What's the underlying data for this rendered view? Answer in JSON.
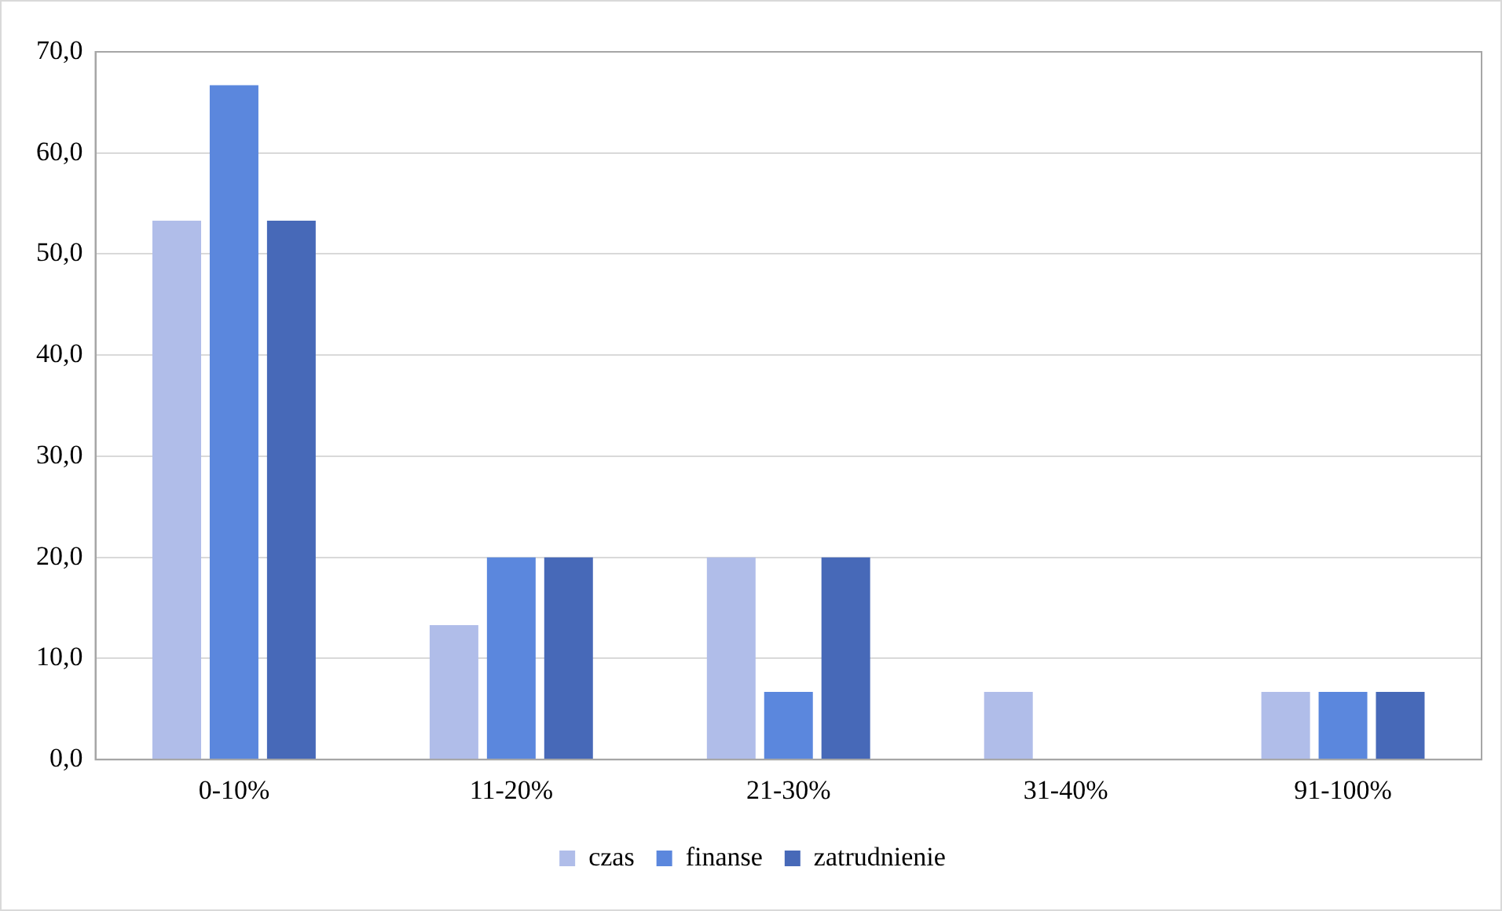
{
  "chart_data": {
    "type": "bar",
    "categories": [
      "0-10%",
      "11-20%",
      "21-30%",
      "31-40%",
      "91-100%"
    ],
    "series": [
      {
        "name": "czas",
        "color": "#b0bde9",
        "values": [
          53.3,
          13.3,
          20,
          6.7,
          6.7
        ]
      },
      {
        "name": "finanse",
        "color": "#5b87dd",
        "values": [
          66.7,
          20,
          6.7,
          0,
          6.7
        ]
      },
      {
        "name": "zatrudnienie",
        "color": "#4769b8",
        "values": [
          53.3,
          20,
          20,
          0,
          6.7
        ]
      }
    ],
    "ylim": [
      0,
      70
    ],
    "yticks": [
      {
        "value": 0,
        "label": "0,0"
      },
      {
        "value": 10,
        "label": "10,0"
      },
      {
        "value": 20,
        "label": "20,0"
      },
      {
        "value": 30,
        "label": "30,0"
      },
      {
        "value": 40,
        "label": "40,0"
      },
      {
        "value": 50,
        "label": "50,0"
      },
      {
        "value": 60,
        "label": "60,0"
      },
      {
        "value": 70,
        "label": "70,0"
      }
    ],
    "grid": "y",
    "legend": "bottom"
  }
}
